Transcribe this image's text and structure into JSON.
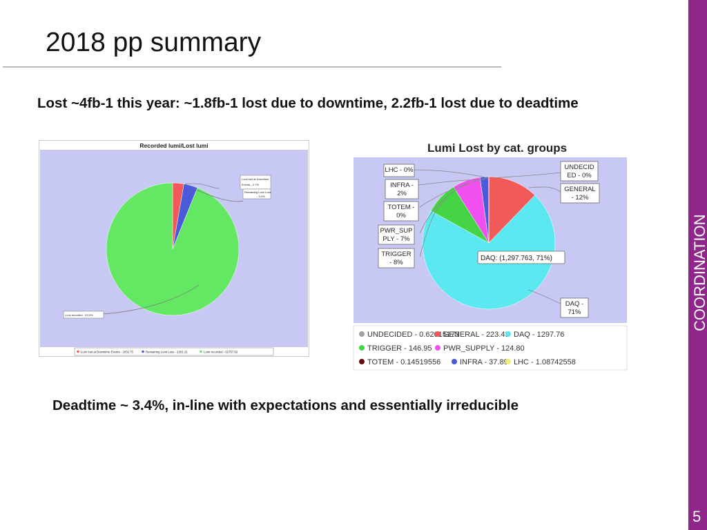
{
  "slide": {
    "title": "2018 pp summary",
    "subtitle": "Lost ~4fb-1 this year: ~1.8fb-1 lost due to downtime, 2.2fb-1 lost due to deadtime",
    "note": "Deadtime ~ 3.4%, in-line with expectations and essentially irreducible",
    "sidebar_label": "COORDINATION",
    "page_number": "5"
  },
  "colors": {
    "accent": "#8f2689",
    "chart_bg": "#c8c8f4",
    "red": "#f25a5a",
    "blue": "#4a5ad8",
    "green": "#64e864",
    "cyan": "#5ce8f0",
    "magenta": "#f050f0",
    "dark_green": "#44d444"
  },
  "chart_data": [
    {
      "type": "pie",
      "title": "Recorded lumi/Lost lumi",
      "series": [
        {
          "name": "Lumi lost at Downtime Events",
          "value": 1832.75,
          "color": "#f25a5a"
        },
        {
          "name": "Remaining Lumi Loss",
          "value": 2261.21,
          "color": "#4a5ad8"
        },
        {
          "name": "Lumi recorded",
          "value": 62757.92,
          "color": "#64e864"
        }
      ],
      "callouts": [
        {
          "text1": "Lumi lost at Downtime",
          "text2": "Events - 2.7%",
          "text3": ""
        },
        {
          "text1": "Remaining Lumi Loss",
          "text2": "- 3.4%",
          "text3": ""
        },
        {
          "text1": "Lumi recorded - 93.8%",
          "text2": "",
          "text3": ""
        }
      ],
      "legend": [
        "Lumi lost at Downtime Events - 1832.75",
        "Remaining Lumi Loss - 2261.21",
        "Lumi recorded - 62757.92"
      ],
      "legend_position": "bottom"
    },
    {
      "type": "pie",
      "title": "Lumi Lost by cat. groups",
      "series": [
        {
          "name": "UNDECIDED",
          "value": 0.62615173,
          "color": "#a0a0a0"
        },
        {
          "name": "GENERAL",
          "value": 223.49,
          "color": "#f25a5a"
        },
        {
          "name": "DAQ",
          "value": 1297.76,
          "color": "#5ce8f0"
        },
        {
          "name": "TRIGGER",
          "value": 146.95,
          "color": "#44d444"
        },
        {
          "name": "PWR_SUPPLY",
          "value": 124.8,
          "color": "#f050f0"
        },
        {
          "name": "TOTEM",
          "value": 0.14519556,
          "color": "#6a0a0a"
        },
        {
          "name": "INFRA",
          "value": 37.89,
          "color": "#4a5ad8"
        },
        {
          "name": "LHC",
          "value": 1.08742558,
          "color": "#f0f070"
        }
      ],
      "callouts_left": [
        {
          "line1": "LHC - 0%",
          "line2": ""
        },
        {
          "line1": "INFRA -",
          "line2": "2%"
        },
        {
          "line1": "TOTEM -",
          "line2": "0%"
        },
        {
          "line1": "PWR_SUP",
          "line2": "PLY - 7%"
        },
        {
          "line1": "TRIGGER",
          "line2": "- 8%"
        }
      ],
      "callouts_right": [
        {
          "line1": "UNDECID",
          "line2": "ED - 0%"
        },
        {
          "line1": "GENERAL",
          "line2": "- 12%"
        },
        {
          "line1": "DAQ -",
          "line2": "71%"
        }
      ],
      "tooltip": "DAQ: (1,297.763, 71%)",
      "legend": [
        "UNDECIDED - 0.62615173",
        "GENERAL - 223.49",
        "DAQ - 1297.76",
        "TRIGGER - 146.95",
        "PWR_SUPPLY - 124.80",
        "TOTEM - 0.14519556",
        "INFRA - 37.89",
        "LHC - 1.08742558"
      ],
      "legend_position": "bottom"
    }
  ]
}
